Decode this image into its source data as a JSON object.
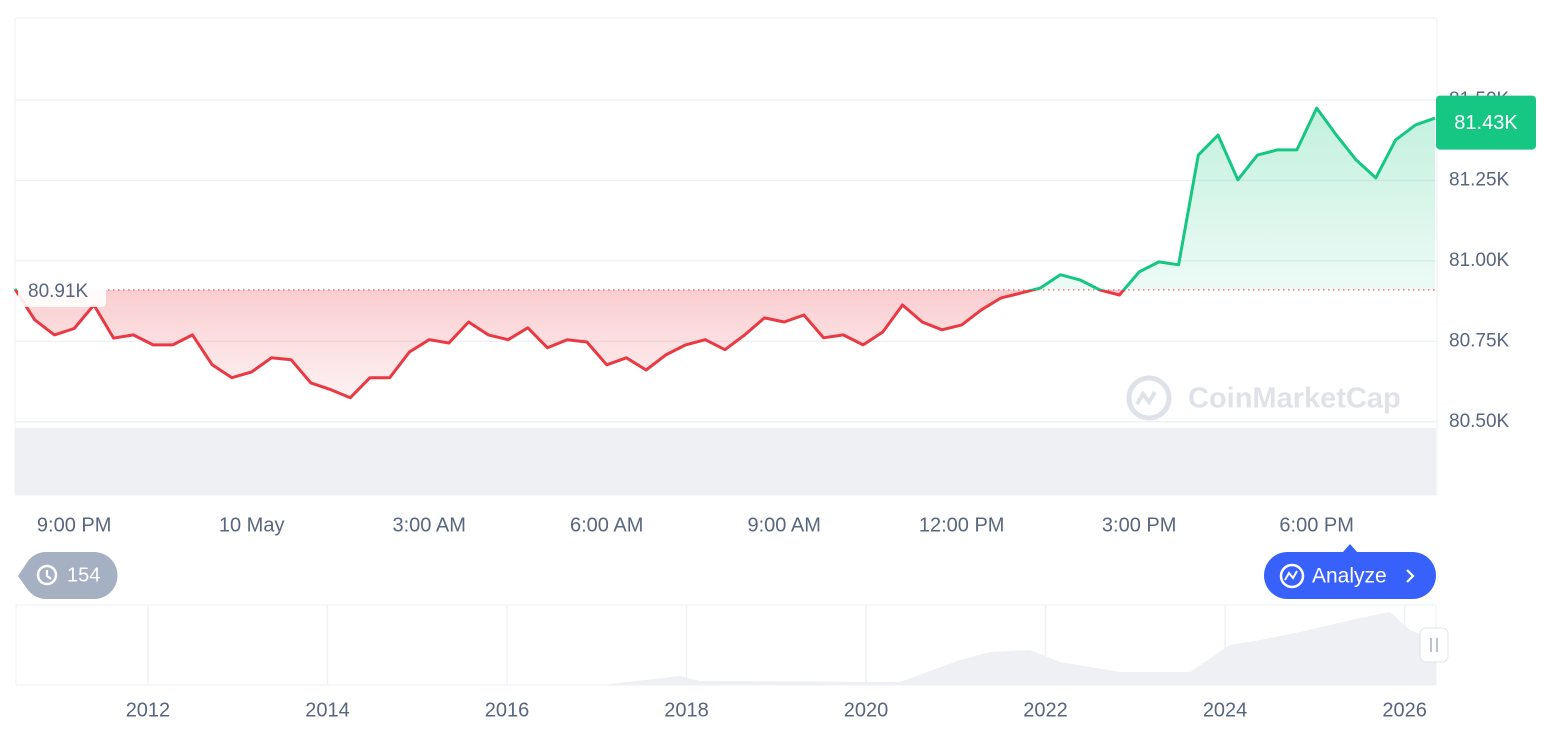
{
  "chart_data": {
    "type": "line",
    "categories": [
      null,
      null,
      null,
      "9:00 PM",
      null,
      null,
      null,
      null,
      null,
      null,
      null,
      null,
      "10 May",
      null,
      null,
      null,
      null,
      null,
      null,
      null,
      null,
      "3:00 AM",
      null,
      null,
      null,
      null,
      null,
      null,
      null,
      null,
      "6:00 AM",
      null,
      null,
      null,
      null,
      null,
      null,
      null,
      null,
      "9:00 AM",
      null,
      null,
      null,
      null,
      null,
      null,
      null,
      null,
      "12:00 PM",
      null,
      null,
      null,
      null,
      null,
      null,
      null,
      null,
      "3:00 PM",
      null,
      null,
      null,
      null,
      null,
      null,
      null,
      null,
      "6:00 PM",
      null,
      null,
      null,
      null,
      null,
      null
    ],
    "values": [
      80.913,
      80.817,
      80.77,
      80.79,
      80.863,
      80.76,
      80.77,
      80.739,
      80.739,
      80.77,
      80.677,
      80.637,
      80.655,
      80.699,
      80.693,
      80.621,
      80.6,
      80.575,
      80.637,
      80.637,
      80.717,
      80.755,
      80.745,
      80.81,
      80.77,
      80.755,
      80.792,
      80.73,
      80.755,
      80.748,
      80.677,
      80.699,
      80.661,
      80.708,
      80.739,
      80.755,
      80.724,
      80.77,
      80.823,
      80.81,
      80.832,
      80.761,
      80.77,
      80.739,
      80.779,
      80.863,
      80.81,
      80.786,
      80.801,
      80.848,
      80.885,
      80.9,
      80.916,
      80.957,
      80.941,
      80.91,
      80.894,
      80.966,
      80.997,
      80.988,
      81.329,
      81.391,
      81.252,
      81.329,
      81.345,
      81.345,
      81.475,
      81.391,
      81.314,
      81.258,
      81.376,
      81.422,
      81.444
    ],
    "up_color": "#16c784",
    "down_color": "#ea3943",
    "ylim": [
      80.49,
      81.755
    ],
    "yticks": [
      {
        "value": 80.5,
        "label": "80.50K"
      },
      {
        "value": 80.75,
        "label": "80.75K"
      },
      {
        "value": 81.0,
        "label": "81.00K"
      },
      {
        "value": 81.25,
        "label": "81.25K"
      },
      {
        "value": 81.5,
        "label": "81.50K"
      }
    ],
    "grid": true,
    "baseline": {
      "value": 80.91,
      "label": "80.91K"
    },
    "last_price": {
      "value": 81.43,
      "label": "81.43K"
    },
    "watermark": "CoinMarketCap",
    "history_badge": "154",
    "button": "Analyze",
    "navigator": {
      "xlim": [
        2010.53,
        2026.35
      ],
      "xticks": [
        2012,
        2014,
        2016,
        2018,
        2020,
        2022,
        2024,
        2026
      ]
    }
  }
}
